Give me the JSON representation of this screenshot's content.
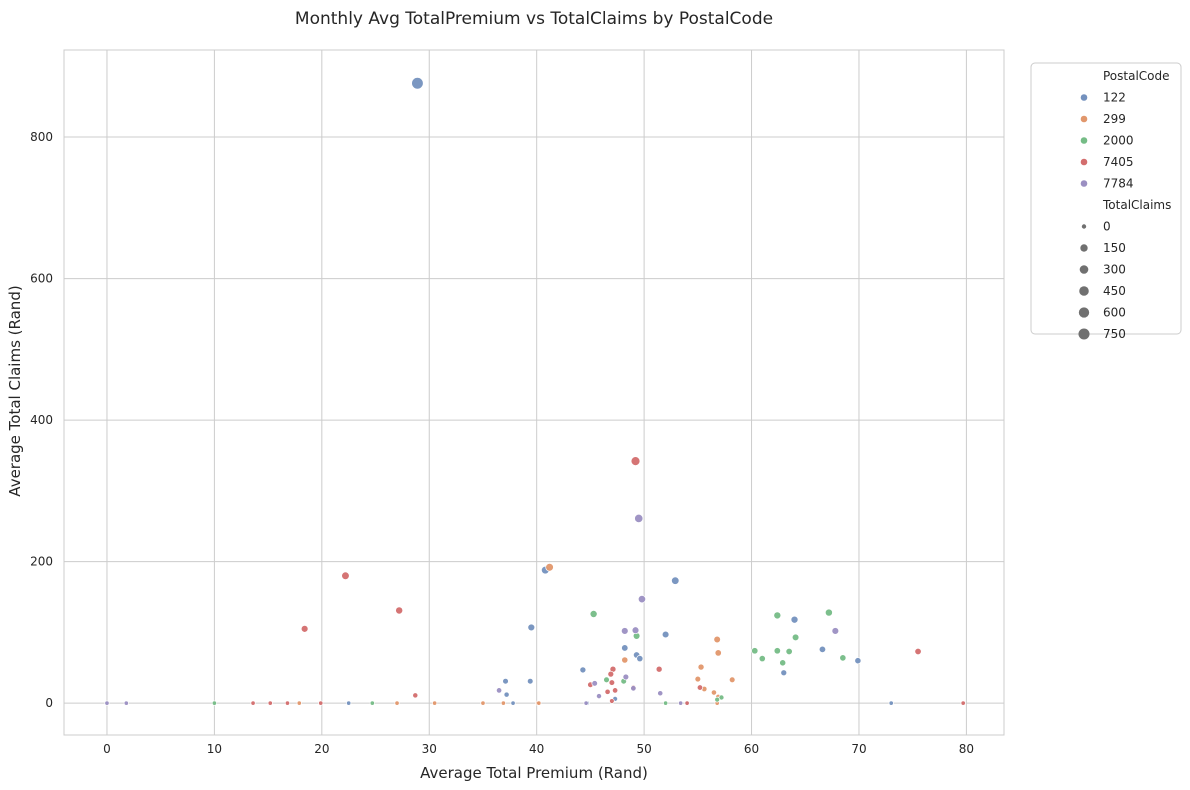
{
  "chart_data": {
    "type": "scatter",
    "title": "Monthly Avg TotalPremium vs TotalClaims by PostalCode",
    "xlabel": "Average Total Premium (Rand)",
    "ylabel": "Average Total Claims (Rand)",
    "xlim": [
      -4,
      83.5
    ],
    "ylim": [
      -45,
      923
    ],
    "xticks": [
      0,
      10,
      20,
      30,
      40,
      50,
      60,
      70,
      80
    ],
    "yticks": [
      0,
      200,
      400,
      600,
      800
    ],
    "grid": true,
    "legend": {
      "placement": "outside-top-right",
      "hue_title": "PostalCode",
      "size_title": "TotalClaims",
      "size_entries": [
        0,
        150,
        300,
        450,
        600,
        750
      ]
    },
    "series": [
      {
        "name": "122",
        "color": "#7491be",
        "points": [
          [
            28.9,
            876
          ],
          [
            40.8,
            188
          ],
          [
            52.9,
            173
          ],
          [
            39.5,
            107
          ],
          [
            64.0,
            118
          ],
          [
            52.0,
            97
          ],
          [
            48.2,
            78
          ],
          [
            49.3,
            68
          ],
          [
            49.6,
            63
          ],
          [
            66.6,
            76
          ],
          [
            69.9,
            60
          ],
          [
            44.3,
            47
          ],
          [
            63.0,
            43
          ],
          [
            37.1,
            31
          ],
          [
            39.4,
            31
          ],
          [
            37.2,
            12
          ],
          [
            47.3,
            6
          ],
          [
            22.5,
            0
          ],
          [
            37.8,
            0
          ],
          [
            44.7,
            0
          ],
          [
            54.0,
            0
          ],
          [
            73.0,
            0
          ]
        ]
      },
      {
        "name": "299",
        "color": "#e1976c",
        "points": [
          [
            41.2,
            192
          ],
          [
            56.8,
            90
          ],
          [
            48.2,
            61
          ],
          [
            56.9,
            71
          ],
          [
            55.3,
            51
          ],
          [
            58.2,
            33
          ],
          [
            55.0,
            34
          ],
          [
            55.6,
            20
          ],
          [
            56.5,
            15
          ],
          [
            56.9,
            9
          ],
          [
            56.8,
            0
          ],
          [
            17.9,
            0
          ],
          [
            27.0,
            0
          ],
          [
            30.5,
            0
          ],
          [
            35.0,
            0
          ],
          [
            36.9,
            0
          ],
          [
            40.1,
            0
          ],
          [
            40.2,
            0
          ]
        ]
      },
      {
        "name": "2000",
        "color": "#75bc86",
        "points": [
          [
            45.3,
            126
          ],
          [
            67.2,
            128
          ],
          [
            62.4,
            124
          ],
          [
            49.3,
            95
          ],
          [
            64.1,
            93
          ],
          [
            60.3,
            74
          ],
          [
            62.4,
            74
          ],
          [
            63.5,
            73
          ],
          [
            61.0,
            63
          ],
          [
            68.5,
            64
          ],
          [
            62.9,
            57
          ],
          [
            48.1,
            31
          ],
          [
            46.5,
            33
          ],
          [
            57.2,
            8
          ],
          [
            56.8,
            5
          ],
          [
            52.0,
            0
          ],
          [
            10.0,
            0
          ],
          [
            24.7,
            0
          ]
        ]
      },
      {
        "name": "7405",
        "color": "#d36d6d",
        "points": [
          [
            49.2,
            342
          ],
          [
            22.2,
            180
          ],
          [
            27.2,
            131
          ],
          [
            18.4,
            105
          ],
          [
            75.5,
            73
          ],
          [
            47.1,
            48
          ],
          [
            51.4,
            48
          ],
          [
            46.9,
            41
          ],
          [
            47.0,
            29
          ],
          [
            45.0,
            26
          ],
          [
            49.0,
            22
          ],
          [
            55.2,
            22
          ],
          [
            47.3,
            18
          ],
          [
            46.6,
            16
          ],
          [
            28.7,
            11
          ],
          [
            47.0,
            3
          ],
          [
            13.6,
            0
          ],
          [
            15.2,
            0
          ],
          [
            16.8,
            0
          ],
          [
            19.9,
            0
          ],
          [
            54.0,
            0
          ],
          [
            79.7,
            0
          ]
        ]
      },
      {
        "name": "7784",
        "color": "#9b8fc2",
        "points": [
          [
            49.5,
            261
          ],
          [
            49.8,
            147
          ],
          [
            48.2,
            102
          ],
          [
            49.2,
            103
          ],
          [
            67.8,
            102
          ],
          [
            48.3,
            37
          ],
          [
            45.4,
            28
          ],
          [
            36.5,
            18
          ],
          [
            49.0,
            21
          ],
          [
            51.5,
            14
          ],
          [
            45.8,
            10
          ],
          [
            0.0,
            0
          ],
          [
            1.8,
            0
          ],
          [
            44.6,
            0
          ],
          [
            53.4,
            0
          ]
        ]
      }
    ]
  }
}
